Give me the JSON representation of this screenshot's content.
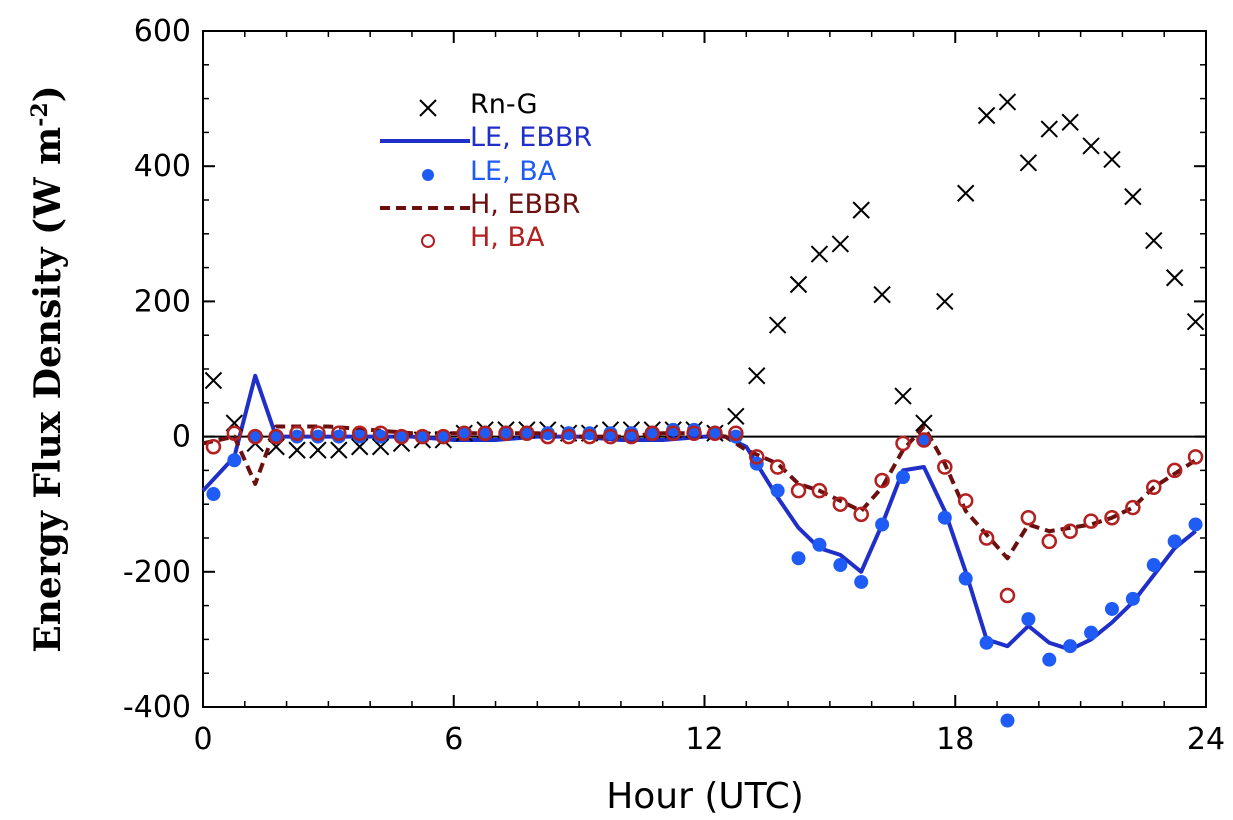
{
  "chart_data": {
    "type": "line",
    "title": "",
    "xlabel": "Hour (UTC)",
    "ylabel": "Energy Flux Density (W m-2)",
    "ylabel_main": "Energy Flux Density (W m",
    "ylabel_sup": "-2",
    "ylabel_close": ")",
    "xlim": [
      0,
      24
    ],
    "ylim": [
      -400,
      600
    ],
    "xticks": [
      0,
      6,
      12,
      18,
      24
    ],
    "yticks": [
      -400,
      -200,
      0,
      200,
      400,
      600
    ],
    "xtick_labels": [
      "0",
      "6",
      "12",
      "18",
      "24"
    ],
    "ytick_labels": [
      "-400",
      "-200",
      "0",
      "200",
      "400",
      "600"
    ],
    "legend_position": "top-left",
    "zero_line": true,
    "grid": false,
    "series": [
      {
        "name": "Rn-G",
        "style": "x-marker",
        "color": "#000000",
        "x": [
          0.25,
          0.75,
          1.25,
          1.75,
          2.25,
          2.75,
          3.25,
          3.75,
          4.25,
          4.75,
          5.25,
          5.75,
          6.25,
          6.75,
          7.25,
          7.75,
          8.25,
          8.75,
          9.25,
          9.75,
          10.25,
          10.75,
          11.25,
          11.75,
          12.25,
          12.75,
          13.25,
          13.75,
          14.25,
          14.75,
          15.25,
          15.75,
          16.25,
          16.75,
          17.25,
          17.75,
          18.25,
          18.75,
          19.25,
          19.75,
          20.25,
          20.75,
          21.25,
          21.75,
          22.25,
          22.75,
          23.25,
          23.75
        ],
        "y": [
          83,
          20,
          -10,
          -15,
          -20,
          -20,
          -20,
          -15,
          -15,
          -10,
          -5,
          -5,
          5,
          10,
          10,
          10,
          10,
          5,
          5,
          10,
          10,
          10,
          10,
          10,
          5,
          30,
          90,
          165,
          225,
          270,
          285,
          335,
          210,
          60,
          20,
          200,
          360,
          475,
          495,
          405,
          455,
          465,
          430,
          410,
          355,
          290,
          235,
          170
        ]
      },
      {
        "name": "LE, EBBR",
        "style": "solid-line",
        "color": "#1f2fc8",
        "x": [
          0,
          0.75,
          1.25,
          1.75,
          2.25,
          3,
          4,
          5,
          6,
          7,
          8,
          9,
          10,
          11,
          12,
          12.5,
          13,
          13.75,
          14.25,
          14.75,
          15.25,
          15.75,
          16.25,
          16.75,
          17.25,
          17.75,
          18.25,
          18.75,
          19.25,
          19.75,
          20.25,
          20.75,
          21.25,
          21.75,
          22.25,
          22.75,
          23.25,
          23.75
        ],
        "y": [
          -80,
          -30,
          90,
          0,
          0,
          0,
          0,
          0,
          -5,
          -5,
          0,
          0,
          -5,
          -5,
          0,
          0,
          -15,
          -90,
          -135,
          -165,
          -175,
          -200,
          -130,
          -50,
          -45,
          -110,
          -200,
          -300,
          -310,
          -280,
          -305,
          -315,
          -300,
          -275,
          -245,
          -205,
          -165,
          -140
        ]
      },
      {
        "name": "LE, BA",
        "style": "filled-dot",
        "color": "#1e5cf5",
        "x": [
          0.25,
          0.75,
          1.25,
          1.75,
          2.25,
          2.75,
          3.25,
          3.75,
          4.25,
          4.75,
          5.25,
          5.75,
          6.25,
          6.75,
          7.25,
          7.75,
          8.25,
          8.75,
          9.25,
          9.75,
          10.25,
          10.75,
          11.25,
          11.75,
          12.25,
          12.75,
          13.25,
          13.75,
          14.25,
          14.75,
          15.25,
          15.75,
          16.25,
          16.75,
          17.25,
          17.75,
          18.25,
          18.75,
          19.25,
          19.75,
          20.25,
          20.75,
          21.25,
          21.75,
          22.25,
          22.75,
          23.25,
          23.75
        ],
        "y": [
          -85,
          -35,
          0,
          0,
          0,
          0,
          0,
          0,
          0,
          0,
          0,
          0,
          5,
          5,
          5,
          5,
          5,
          5,
          5,
          5,
          5,
          5,
          10,
          10,
          5,
          0,
          -40,
          -80,
          -180,
          -160,
          -190,
          -215,
          -130,
          -60,
          -5,
          -120,
          -210,
          -305,
          -420,
          -270,
          -330,
          -310,
          -290,
          -255,
          -240,
          -190,
          -155,
          -130
        ]
      },
      {
        "name": "H, EBBR",
        "style": "dashed-line",
        "color": "#6b0f0f",
        "x": [
          0,
          0.75,
          1.25,
          1.75,
          2.25,
          3,
          4,
          5,
          6,
          7,
          8,
          9,
          10,
          11,
          12,
          12.5,
          13,
          13.75,
          14.25,
          14.75,
          15.25,
          15.75,
          16.25,
          16.75,
          17.25,
          17.75,
          18.25,
          18.75,
          19.25,
          19.75,
          20.25,
          20.75,
          21.25,
          21.75,
          22.25,
          22.75,
          23.25,
          23.75
        ],
        "y": [
          -10,
          0,
          -70,
          15,
          15,
          15,
          10,
          5,
          5,
          5,
          5,
          0,
          0,
          5,
          5,
          0,
          -20,
          -40,
          -70,
          -80,
          -95,
          -110,
          -75,
          -20,
          15,
          -40,
          -110,
          -145,
          -180,
          -130,
          -140,
          -135,
          -130,
          -120,
          -105,
          -75,
          -55,
          -35
        ]
      },
      {
        "name": "H, BA",
        "style": "open-circle",
        "color": "#b22020",
        "x": [
          0.25,
          0.75,
          1.25,
          1.75,
          2.25,
          2.75,
          3.25,
          3.75,
          4.25,
          4.75,
          5.25,
          5.75,
          6.25,
          6.75,
          7.25,
          7.75,
          8.25,
          8.75,
          9.25,
          9.75,
          10.25,
          10.75,
          11.25,
          11.75,
          12.25,
          12.75,
          13.25,
          13.75,
          14.25,
          14.75,
          15.25,
          15.75,
          16.25,
          16.75,
          17.25,
          17.75,
          18.25,
          18.75,
          19.25,
          19.75,
          20.25,
          20.75,
          21.25,
          21.75,
          22.25,
          22.75,
          23.25,
          23.75
        ],
        "y": [
          -15,
          5,
          0,
          0,
          5,
          5,
          5,
          5,
          5,
          0,
          0,
          0,
          5,
          5,
          5,
          5,
          0,
          0,
          0,
          0,
          0,
          5,
          5,
          5,
          5,
          5,
          -30,
          -45,
          -80,
          -80,
          -100,
          -115,
          -65,
          -10,
          -5,
          -45,
          -95,
          -150,
          -235,
          -120,
          -155,
          -140,
          -125,
          -120,
          -105,
          -75,
          -50,
          -30
        ]
      }
    ]
  }
}
